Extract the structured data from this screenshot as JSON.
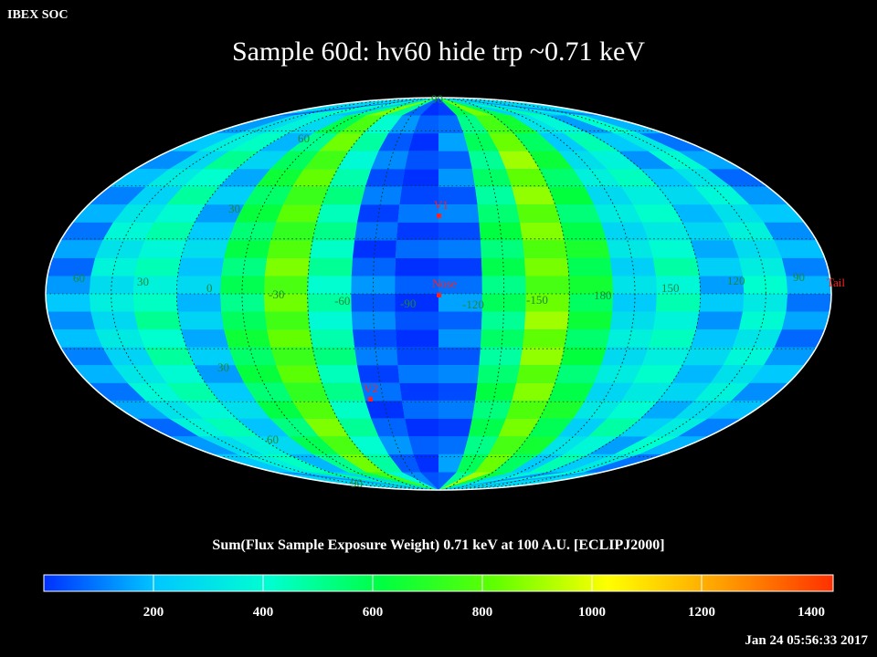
{
  "header": {
    "org": "IBEX SOC",
    "title": "Sample 60d: hv60 hide trp ~0.71 keV"
  },
  "map": {
    "projection": "mollweide",
    "grid": true,
    "longitude_labels": [
      "60",
      "30",
      "0",
      "-30",
      "-60",
      "-90",
      "-120",
      "-150",
      "180",
      "150",
      "120",
      "90"
    ],
    "latitude_labels": [
      "90",
      "60",
      "30",
      "30",
      "60",
      "90"
    ],
    "markers": [
      {
        "label": "V1",
        "color": "#ff2020"
      },
      {
        "label": "Nose",
        "color": "#ff2020"
      },
      {
        "label": "V2",
        "color": "#ff2020"
      },
      {
        "label": "Tail",
        "color": "#ff2020"
      }
    ]
  },
  "colorbar": {
    "title": "Sum(Flux Sample Exposure Weight)  0.71 keV at 100 A.U. [ECLIPJ2000]",
    "range": [
      0,
      1440
    ],
    "ticks": [
      "200",
      "400",
      "600",
      "800",
      "1000",
      "1200",
      "1400"
    ],
    "stops": [
      "#0030ff",
      "#00c8ff",
      "#00ffd0",
      "#00ff40",
      "#60ff00",
      "#ffff00",
      "#ffa000",
      "#ff3000"
    ]
  },
  "footer": {
    "timestamp": "Jan 24 05:56:33 2017"
  }
}
